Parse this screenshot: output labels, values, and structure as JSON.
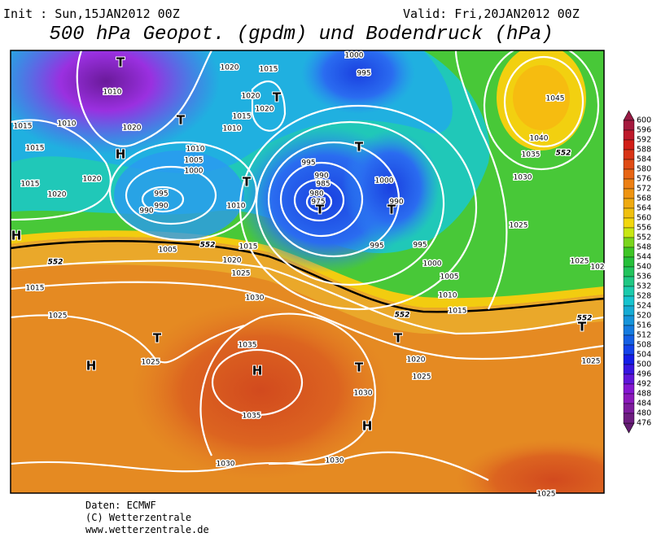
{
  "header": {
    "init": "Init : Sun,15JAN2012 00Z",
    "valid": "Valid: Fri,20JAN2012 00Z",
    "title": "500 hPa Geopot. (gpdm) und Bodendruck (hPa)"
  },
  "colorbar": {
    "labels": [
      600,
      596,
      592,
      588,
      584,
      580,
      576,
      572,
      568,
      564,
      560,
      556,
      552,
      548,
      544,
      540,
      536,
      532,
      528,
      524,
      520,
      516,
      512,
      508,
      504,
      500,
      496,
      492,
      488,
      484,
      480,
      476
    ]
  },
  "map": {
    "labels": [
      "T",
      "1020",
      "1015",
      "1000",
      "995",
      "1010",
      "1020",
      "T",
      "1020",
      "1015",
      "T",
      "1015",
      "1010",
      "1020",
      "1010",
      "1015",
      "H",
      "1010",
      "1005",
      "1000",
      "T",
      "995",
      "990",
      "985",
      "980",
      "975",
      "T",
      "1000",
      "990",
      "T",
      "1020",
      "1015",
      "1020",
      "T",
      "995",
      "990",
      "990",
      "1010",
      "H",
      "1005",
      "1015",
      "995",
      "995",
      "1000",
      "1020",
      "1025",
      "1005",
      "1015",
      "1010",
      "1025",
      "1030",
      "1015",
      "T",
      "T",
      "1025",
      "H",
      "1035",
      "H",
      "T",
      "1020",
      "1025",
      "1030",
      "1035",
      "H",
      "1030",
      "1030",
      "1025",
      "1045",
      "1040",
      "1035",
      "1030",
      "1025",
      "1025",
      "102",
      "1025",
      "T",
      "552",
      "552",
      "552",
      "552",
      "552"
    ]
  },
  "footer": {
    "lines": [
      "Daten: ECMWF",
      "(C) Wetterzentrale",
      "www.wetterzentrale.de"
    ]
  }
}
